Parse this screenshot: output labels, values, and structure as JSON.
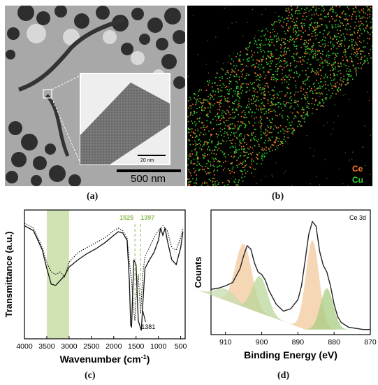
{
  "figure": {
    "panels": {
      "a": {
        "caption": "(a)",
        "scale_bar_main": "500 nm",
        "scale_bar_inset": "20 nm"
      },
      "b": {
        "caption": "(b)",
        "legend": [
          {
            "name": "Ce",
            "color": "#ff7a2a"
          },
          {
            "name": "Cu",
            "color": "#2fd12f"
          }
        ]
      },
      "c": {
        "caption": "(c)",
        "ylabel": "Transmittance (a.u.)",
        "xlabel_main": "Wavenumber (cm",
        "xlabel_sup": "-1",
        "xlabel_end": ")",
        "annotations": {
          "left": "1525",
          "right": "1397",
          "bottom": "1381"
        }
      },
      "d": {
        "caption": "(d)",
        "label": "Ce 3d",
        "ylabel": "Counts",
        "xlabel": "Binding Energy (eV)"
      }
    }
  },
  "chart_data": [
    {
      "type": "line",
      "xlabel": "Wavenumber (cm-1)",
      "ylabel": "Transmittance (a.u.)",
      "xlim": [
        4000,
        400
      ],
      "xticks": [
        4000,
        3500,
        3000,
        2500,
        2000,
        1500,
        1000,
        500
      ],
      "annotations": [
        1525,
        1397,
        1381
      ],
      "highlight_band": [
        3500,
        3000
      ],
      "series": [
        {
          "style": "solid",
          "x": [
            4000,
            3800,
            3600,
            3500,
            3400,
            3300,
            3200,
            3100,
            3000,
            2800,
            2600,
            2400,
            2200,
            2000,
            1900,
            1800,
            1700,
            1650,
            1620,
            1600,
            1550,
            1500,
            1450,
            1400,
            1381,
            1350,
            1300,
            1200,
            1100,
            1000,
            950,
            900,
            850,
            800,
            700,
            600,
            500,
            450
          ],
          "y": [
            0.9,
            0.86,
            0.7,
            0.55,
            0.42,
            0.41,
            0.45,
            0.49,
            0.56,
            0.62,
            0.67,
            0.71,
            0.76,
            0.82,
            0.85,
            0.84,
            0.78,
            0.45,
            0.08,
            0.07,
            0.62,
            0.58,
            0.12,
            0.06,
            0.04,
            0.25,
            0.55,
            0.62,
            0.68,
            0.78,
            0.88,
            0.82,
            0.88,
            0.78,
            0.62,
            0.58,
            0.72,
            0.85
          ]
        },
        {
          "style": "dotted",
          "x": [
            4000,
            3800,
            3600,
            3500,
            3400,
            3300,
            3200,
            3100,
            3000,
            2800,
            2600,
            2400,
            2200,
            2000,
            1900,
            1800,
            1700,
            1650,
            1600,
            1550,
            1525,
            1500,
            1450,
            1420,
            1397,
            1350,
            1300,
            1200,
            1100,
            1000,
            900,
            800,
            700,
            600,
            500,
            450
          ],
          "y": [
            0.92,
            0.88,
            0.72,
            0.6,
            0.52,
            0.5,
            0.52,
            0.48,
            0.6,
            0.68,
            0.72,
            0.76,
            0.8,
            0.86,
            0.88,
            0.86,
            0.8,
            0.6,
            0.45,
            0.2,
            0.12,
            0.3,
            0.5,
            0.3,
            0.18,
            0.5,
            0.65,
            0.72,
            0.8,
            0.86,
            0.9,
            0.86,
            0.72,
            0.7,
            0.8,
            0.88
          ]
        }
      ]
    },
    {
      "type": "line",
      "title": "Ce 3d",
      "xlabel": "Binding Energy (eV)",
      "ylabel": "Counts",
      "xlim": [
        914,
        870
      ],
      "xticks": [
        910,
        900,
        890,
        880,
        870
      ],
      "series": [
        {
          "style": "solid",
          "x": [
            914,
            912,
            910,
            908,
            906,
            905,
            904,
            903,
            902,
            901,
            900,
            899,
            898,
            896,
            894,
            892,
            890,
            889,
            888,
            887,
            886,
            885,
            884,
            883,
            882,
            881,
            880,
            879,
            878,
            876,
            874,
            872,
            870
          ],
          "y": [
            0.37,
            0.38,
            0.4,
            0.43,
            0.55,
            0.66,
            0.75,
            0.72,
            0.6,
            0.52,
            0.5,
            0.45,
            0.36,
            0.24,
            0.18,
            0.2,
            0.28,
            0.4,
            0.62,
            0.85,
            0.96,
            0.92,
            0.7,
            0.58,
            0.52,
            0.4,
            0.24,
            0.13,
            0.08,
            0.04,
            0.03,
            0.02,
            0.02
          ]
        }
      ]
    }
  ]
}
